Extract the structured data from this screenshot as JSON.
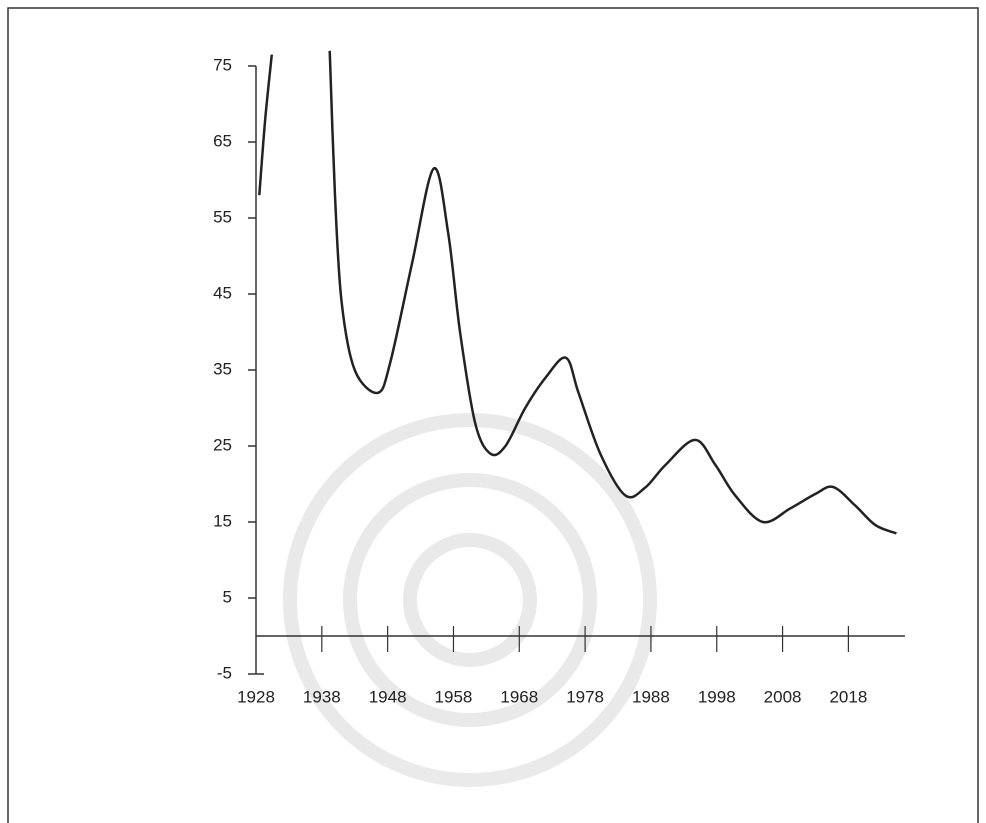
{
  "chart_data": {
    "type": "line",
    "x": [
      1928.5,
      1929.4,
      1930.4,
      null,
      1939.2,
      1940,
      1941,
      1943,
      1946.5,
      1948.4,
      1951.7,
      1955,
      1957.2,
      1959,
      1961.3,
      1963.6,
      1965.9,
      1968.9,
      1972,
      1975.1,
      1977,
      1980.3,
      1984.1,
      1987.1,
      1990.2,
      1994.7,
      1997.8,
      2000.8,
      2005,
      2009.2,
      2013,
      2015.7,
      2019,
      2022.1,
      2025.3
    ],
    "series": [
      {
        "color": "#222222",
        "values": [
          58,
          68,
          76.5,
          null,
          77,
          58,
          44,
          35,
          32,
          36,
          49,
          61.5,
          53,
          40,
          28,
          24,
          25,
          30,
          34,
          36.6,
          32,
          24,
          18.5,
          19.5,
          22.5,
          25.8,
          22.5,
          18.5,
          15,
          16.8,
          18.7,
          19.6,
          17.2,
          14.6,
          13.5
        ]
      }
    ],
    "xlim": [
      1928,
      2026.6
    ],
    "ylim": [
      -5,
      75
    ],
    "xticks": [
      1928,
      1938,
      1948,
      1958,
      1968,
      1978,
      1988,
      1998,
      2008,
      2018
    ],
    "yticks": [
      -5,
      5,
      15,
      25,
      35,
      45,
      55,
      65,
      75
    ]
  }
}
